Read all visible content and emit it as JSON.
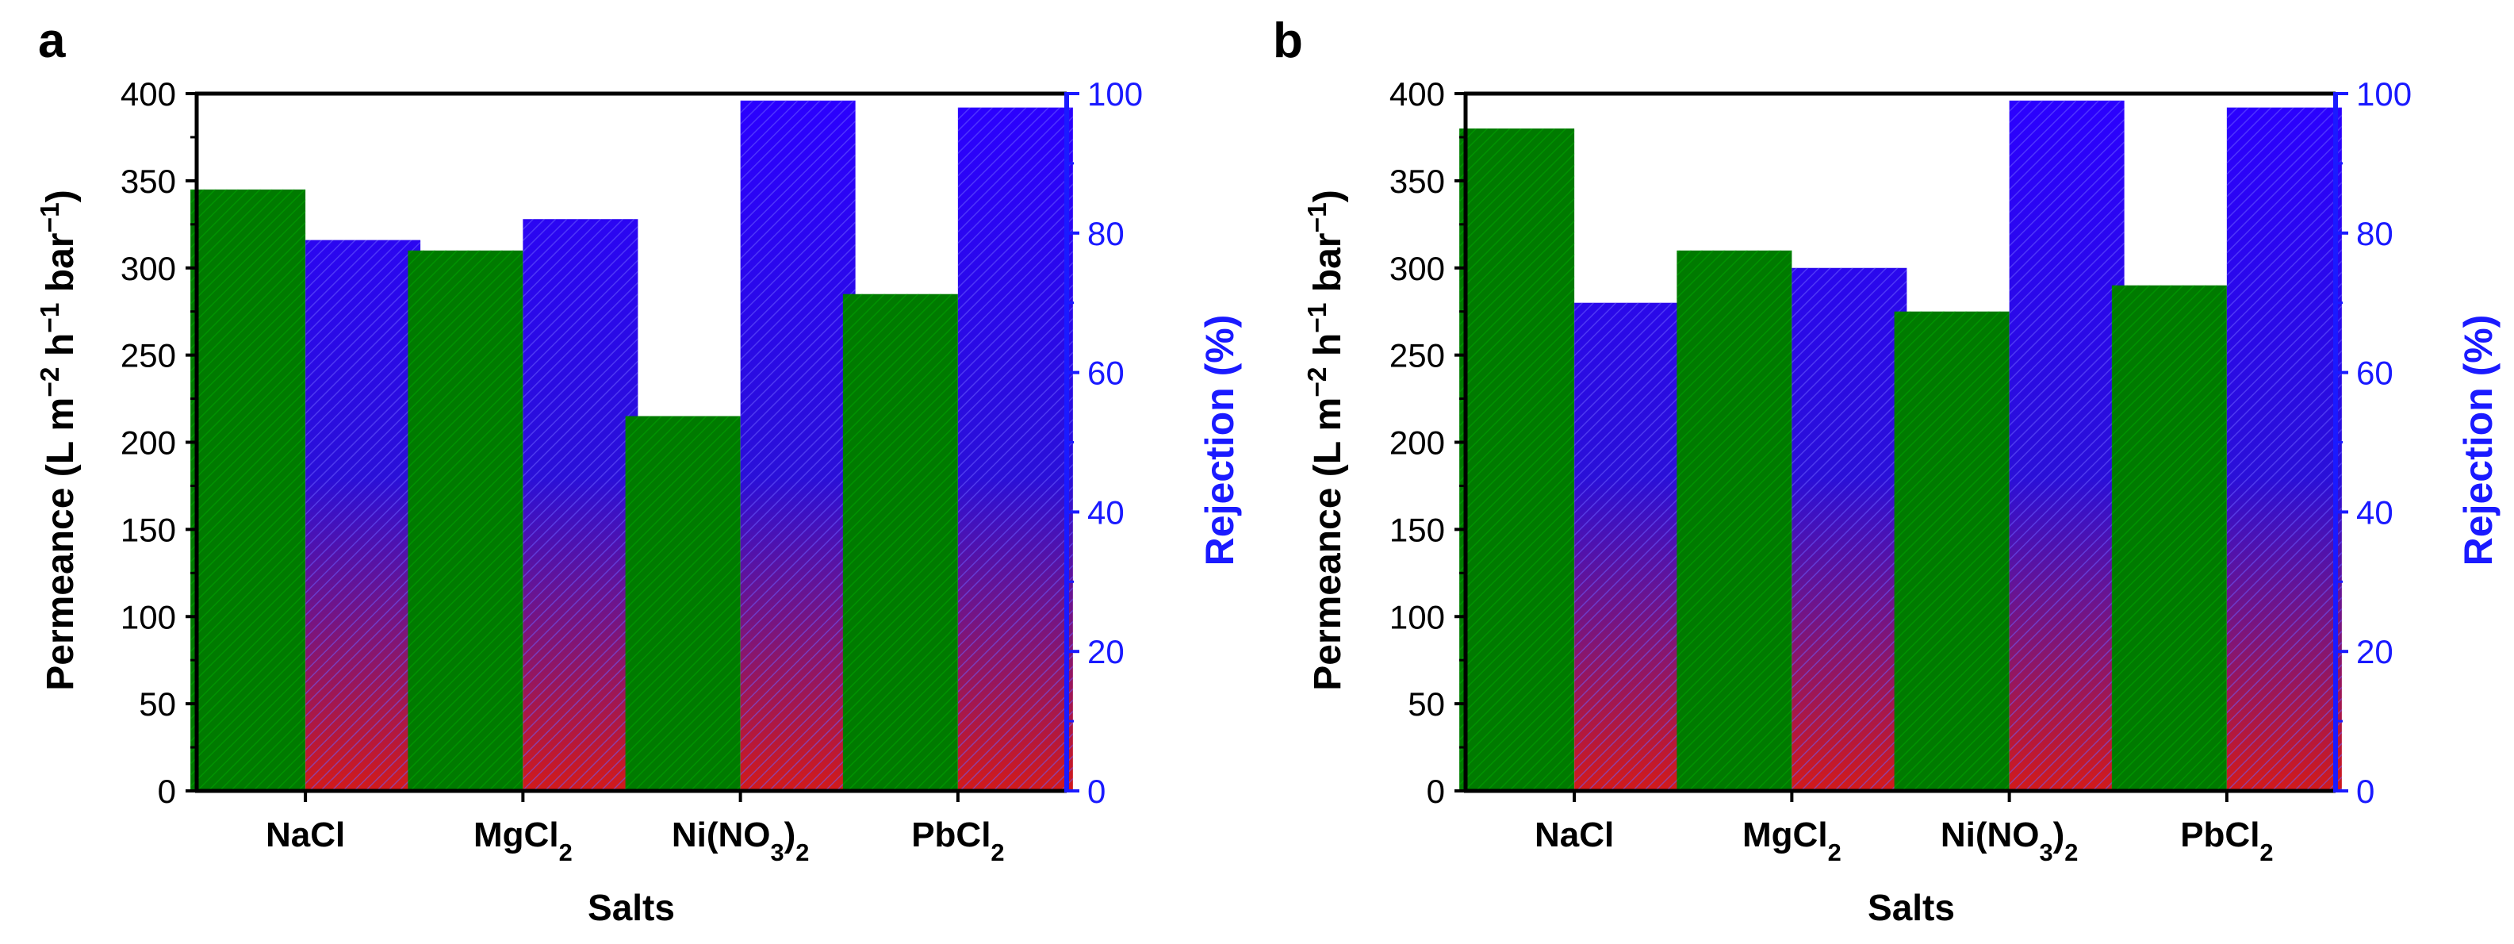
{
  "colors": {
    "permeance": "#007a00",
    "rejection_top": "#2b00ff",
    "rejection_bottom": "#d21a1a",
    "right_axis": "#1a1aff",
    "axis": "#000000"
  },
  "chart_data": [
    {
      "panel_label": "a",
      "type": "bar",
      "title": "",
      "categories": [
        "NaCl",
        "MgCl2",
        "Ni(NO3)2",
        "PbCl2"
      ],
      "xlabel": "Salts",
      "ylabel": "Permeance (L m−2 h−1 bar−1)",
      "y2label": "Rejection (%)",
      "ylim": [
        0,
        400
      ],
      "y2lim": [
        0,
        100
      ],
      "yticks": [
        "0",
        "50",
        "100",
        "150",
        "200",
        "250",
        "300",
        "350",
        "400"
      ],
      "y2ticks": [
        "0",
        "20",
        "40",
        "60",
        "80",
        "100"
      ],
      "series": [
        {
          "name": "Permeance",
          "axis": "left",
          "values": [
            345,
            310,
            215,
            285
          ]
        },
        {
          "name": "Rejection",
          "axis": "right",
          "values": [
            79,
            82,
            99,
            98
          ]
        }
      ]
    },
    {
      "panel_label": "b",
      "type": "bar",
      "title": "",
      "categories": [
        "NaCl",
        "MgCl2",
        "Ni(NO3)2",
        "PbCl2"
      ],
      "xlabel": "Salts",
      "ylabel": "Permeance (L m−2 h−1 bar−1)",
      "y2label": "Rejection (%)",
      "ylim": [
        0,
        400
      ],
      "y2lim": [
        0,
        100
      ],
      "yticks": [
        "0",
        "50",
        "100",
        "150",
        "200",
        "250",
        "300",
        "350",
        "400"
      ],
      "y2ticks": [
        "0",
        "20",
        "40",
        "60",
        "80",
        "100"
      ],
      "series": [
        {
          "name": "Permeance",
          "axis": "left",
          "values": [
            380,
            310,
            275,
            290
          ]
        },
        {
          "name": "Rejection",
          "axis": "right",
          "values": [
            70,
            75,
            99,
            98
          ]
        }
      ]
    }
  ]
}
